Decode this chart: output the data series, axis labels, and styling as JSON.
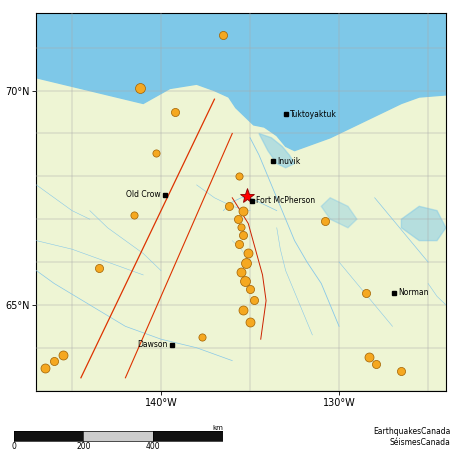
{
  "fig_width": 4.55,
  "fig_height": 4.49,
  "dpi": 100,
  "map_xlim": [
    -147,
    -124
  ],
  "map_ylim": [
    63.0,
    71.8
  ],
  "ocean_color": "#7ec8e8",
  "land_color": "#eef5d4",
  "graticule_color": "#aaaaaa",
  "river_color": "#88c8e8",
  "fault_color": "#dd3300",
  "border_color": "#cc2200",
  "eq_color": "#f5a820",
  "eq_edge_color": "#a06000",
  "star_color": "#ff0000",
  "grid_lw": 0.35,
  "cities": [
    {
      "name": "Tuktoyaktuk",
      "lon": -133.0,
      "lat": 69.45,
      "ha": "left",
      "va": "center"
    },
    {
      "name": "Inuvik",
      "lon": -133.7,
      "lat": 68.35,
      "ha": "left",
      "va": "center"
    },
    {
      "name": "Old Crow",
      "lon": -139.8,
      "lat": 67.57,
      "ha": "right",
      "va": "center"
    },
    {
      "name": "Fort McPherson",
      "lon": -134.9,
      "lat": 67.43,
      "ha": "left",
      "va": "center"
    },
    {
      "name": "Norman",
      "lon": -126.9,
      "lat": 65.28,
      "ha": "left",
      "va": "center"
    },
    {
      "name": "Dawson",
      "lon": -139.4,
      "lat": 64.07,
      "ha": "right",
      "va": "center"
    }
  ],
  "earthquakes": [
    {
      "lon": -136.5,
      "lat": 71.3,
      "ms": 9
    },
    {
      "lon": -141.2,
      "lat": 70.05,
      "ms": 11
    },
    {
      "lon": -139.2,
      "lat": 69.5,
      "ms": 9
    },
    {
      "lon": -140.3,
      "lat": 68.55,
      "ms": 8
    },
    {
      "lon": -135.6,
      "lat": 68.0,
      "ms": 8
    },
    {
      "lon": -141.5,
      "lat": 67.1,
      "ms": 8
    },
    {
      "lon": -143.5,
      "lat": 65.85,
      "ms": 9
    },
    {
      "lon": -136.2,
      "lat": 67.3,
      "ms": 9
    },
    {
      "lon": -135.4,
      "lat": 67.2,
      "ms": 10
    },
    {
      "lon": -135.7,
      "lat": 67.0,
      "ms": 9
    },
    {
      "lon": -135.5,
      "lat": 66.82,
      "ms": 8
    },
    {
      "lon": -135.4,
      "lat": 66.62,
      "ms": 9
    },
    {
      "lon": -135.6,
      "lat": 66.42,
      "ms": 9
    },
    {
      "lon": -135.1,
      "lat": 66.22,
      "ms": 10
    },
    {
      "lon": -135.2,
      "lat": 65.97,
      "ms": 11
    },
    {
      "lon": -135.5,
      "lat": 65.77,
      "ms": 10
    },
    {
      "lon": -135.3,
      "lat": 65.55,
      "ms": 11
    },
    {
      "lon": -135.0,
      "lat": 65.38,
      "ms": 9
    },
    {
      "lon": -134.8,
      "lat": 65.12,
      "ms": 9
    },
    {
      "lon": -135.4,
      "lat": 64.88,
      "ms": 10
    },
    {
      "lon": -135.0,
      "lat": 64.6,
      "ms": 10
    },
    {
      "lon": -137.7,
      "lat": 64.25,
      "ms": 8
    },
    {
      "lon": -130.8,
      "lat": 66.95,
      "ms": 9
    },
    {
      "lon": -128.5,
      "lat": 65.28,
      "ms": 9
    },
    {
      "lon": -145.5,
      "lat": 63.82,
      "ms": 10
    },
    {
      "lon": -146.0,
      "lat": 63.68,
      "ms": 9
    },
    {
      "lon": -146.5,
      "lat": 63.52,
      "ms": 10
    },
    {
      "lon": -128.3,
      "lat": 63.78,
      "ms": 10
    },
    {
      "lon": -127.9,
      "lat": 63.62,
      "ms": 9
    },
    {
      "lon": -126.5,
      "lat": 63.45,
      "ms": 9
    }
  ],
  "main_shock": {
    "lon": -135.15,
    "lat": 67.55
  },
  "lat_ticks": [
    65,
    70
  ],
  "lon_ticks": [
    -140,
    -130
  ],
  "graticule_lons": [
    -150,
    -145,
    -140,
    -135,
    -130,
    -125
  ],
  "graticule_lats": [
    63,
    64,
    65,
    66,
    67,
    68,
    69,
    70,
    71,
    72
  ],
  "attribution": "EarthquakesCanada\nSéismesCanada"
}
